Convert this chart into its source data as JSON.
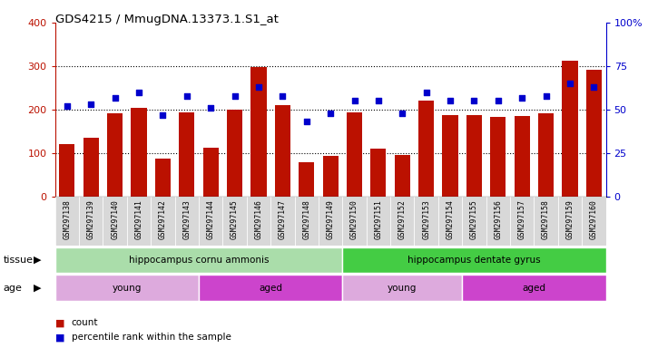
{
  "title": "GDS4215 / MmugDNA.13373.1.S1_at",
  "samples": [
    "GSM297138",
    "GSM297139",
    "GSM297140",
    "GSM297141",
    "GSM297142",
    "GSM297143",
    "GSM297144",
    "GSM297145",
    "GSM297146",
    "GSM297147",
    "GSM297148",
    "GSM297149",
    "GSM297150",
    "GSM297151",
    "GSM297152",
    "GSM297153",
    "GSM297154",
    "GSM297155",
    "GSM297156",
    "GSM297157",
    "GSM297158",
    "GSM297159",
    "GSM297160"
  ],
  "counts": [
    120,
    135,
    192,
    205,
    88,
    193,
    112,
    200,
    297,
    210,
    80,
    93,
    193,
    110,
    96,
    220,
    187,
    187,
    183,
    185,
    192,
    313,
    292
  ],
  "percentiles": [
    52,
    53,
    57,
    60,
    47,
    58,
    51,
    58,
    63,
    58,
    43,
    48,
    55,
    55,
    48,
    60,
    55,
    55,
    55,
    57,
    58,
    65,
    63
  ],
  "bar_color": "#bb1100",
  "dot_color": "#0000cc",
  "ylim_left": [
    0,
    400
  ],
  "ylim_right": [
    0,
    100
  ],
  "yticks_left": [
    0,
    100,
    200,
    300,
    400
  ],
  "yticks_right": [
    0,
    25,
    50,
    75,
    100
  ],
  "tissue_groups": [
    {
      "label": "hippocampus cornu ammonis",
      "start": 0,
      "end": 12,
      "color": "#aaddaa"
    },
    {
      "label": "hippocampus dentate gyrus",
      "start": 12,
      "end": 23,
      "color": "#44cc44"
    }
  ],
  "age_groups": [
    {
      "label": "young",
      "start": 0,
      "end": 6,
      "color": "#ddaadd"
    },
    {
      "label": "aged",
      "start": 6,
      "end": 12,
      "color": "#cc44cc"
    },
    {
      "label": "young",
      "start": 12,
      "end": 17,
      "color": "#ddaadd"
    },
    {
      "label": "aged",
      "start": 17,
      "end": 23,
      "color": "#cc44cc"
    }
  ],
  "tissue_label": "tissue",
  "age_label": "age",
  "legend_count_label": "count",
  "legend_pct_label": "percentile rank within the sample",
  "background_color": "#ffffff",
  "plot_bg_color": "#ffffff",
  "xticklabel_bg": "#d8d8d8"
}
